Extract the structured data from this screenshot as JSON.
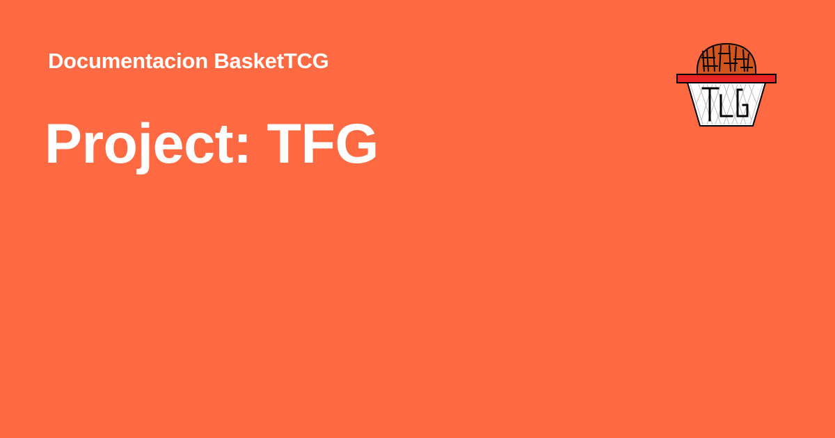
{
  "theme": {
    "background": "#ff6a42",
    "text": "#ffffff"
  },
  "header": {
    "site_name": "Documentacion BasketTCG"
  },
  "main": {
    "title": "Project: TFG"
  },
  "logo": {
    "icon": "basket-tcg-logo-icon",
    "ball_color": "#d2551f",
    "rim_color": "#e62222"
  }
}
